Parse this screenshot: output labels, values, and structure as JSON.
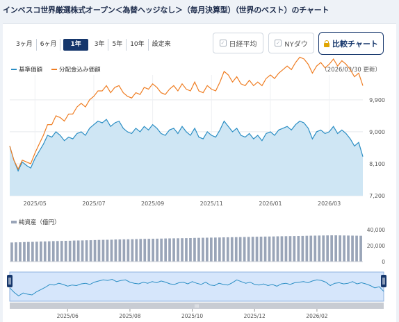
{
  "page_title": "インベスコ世界厳選株式オープン＜為替ヘッジなし＞（毎月決算型）（世界のベスト）のチャート",
  "periods": [
    "3ヶ月",
    "6ヶ月",
    "1年",
    "3年",
    "5年",
    "10年",
    "設定来"
  ],
  "active_period": "1年",
  "compare": {
    "nikkei_label": "日経平均",
    "nydow_label": "NYダウ",
    "compare_chart_label": "比較チャート"
  },
  "legend": {
    "nav_label": "基準価額",
    "dividend_label": "分配金込み価額",
    "updated": "（2026/03/30 更新）"
  },
  "colors": {
    "nav": "#2b8ec4",
    "nav_fill": "#cfe6f4",
    "dividend": "#ef7d22",
    "bars": "#9aa5b8",
    "navigator_bg": "#d6e6fb"
  },
  "chart_data": {
    "type": "line",
    "x_tick_labels": [
      "2025/05",
      "2025/07",
      "2025/09",
      "2025/11",
      "2026/01",
      "2026/03"
    ],
    "y_tick_labels": [
      "9,900",
      "9,000",
      "8,100",
      "7,200"
    ],
    "ylim": [
      7200,
      10600
    ],
    "series": [
      {
        "name": "基準価額",
        "values": [
          8600,
          8200,
          7900,
          8150,
          8050,
          7980,
          8250,
          8450,
          8650,
          8900,
          8850,
          9000,
          8900,
          8750,
          8850,
          8800,
          8950,
          9000,
          8900,
          9100,
          9200,
          9300,
          9250,
          9350,
          9150,
          9250,
          9300,
          9100,
          9000,
          8950,
          9100,
          9000,
          9150,
          9050,
          9200,
          9100,
          8950,
          8900,
          9050,
          9100,
          8950,
          9150,
          9000,
          8900,
          9100,
          8850,
          8800,
          9000,
          8900,
          8850,
          9050,
          9300,
          9150,
          9000,
          9100,
          8900,
          8850,
          8950,
          8800,
          8900,
          8750,
          8950,
          9000,
          8900,
          9050,
          9100,
          9150,
          9050,
          9200,
          9300,
          9250,
          9100,
          8800,
          9000,
          9050,
          8950,
          9000,
          9150,
          8950,
          9050,
          8950,
          8800,
          8600,
          8700,
          8300
        ]
      },
      {
        "name": "分配金込み価額",
        "values": [
          8600,
          8200,
          7950,
          8200,
          8150,
          8100,
          8400,
          8650,
          8900,
          9200,
          9200,
          9450,
          9400,
          9300,
          9500,
          9500,
          9700,
          9800,
          9700,
          9900,
          10000,
          10150,
          10150,
          10300,
          10100,
          10250,
          10300,
          10100,
          10000,
          9950,
          10100,
          10050,
          10250,
          10200,
          10350,
          10250,
          10100,
          10050,
          10200,
          10300,
          10150,
          10350,
          10200,
          10150,
          10400,
          10150,
          10100,
          10300,
          10200,
          10150,
          10400,
          10700,
          10600,
          10400,
          10550,
          10350,
          10300,
          10450,
          10300,
          10400,
          10300,
          10500,
          10600,
          10500,
          10650,
          10750,
          10850,
          10750,
          10950,
          11100,
          11050,
          10900,
          10650,
          10850,
          10950,
          10800,
          10900,
          11050,
          10850,
          11000,
          10900,
          10750,
          10550,
          10650,
          10300
        ]
      },
      {
        "name": "純資産（億円）",
        "values": [
          24000,
          24200,
          24300,
          24500,
          24700,
          24800,
          25000,
          25200,
          25300,
          25500,
          25700,
          25800,
          26000,
          26100,
          26200,
          26400,
          26500,
          26600,
          26800,
          26900,
          27000,
          27200,
          27300,
          27400,
          27500,
          27700,
          27800,
          27900,
          28000,
          28100,
          28300,
          28400,
          28500,
          28600,
          28700,
          28800,
          28900,
          29000,
          29100,
          29200,
          29300,
          29400,
          29500,
          29600,
          29700,
          29800,
          29900,
          30000,
          30100,
          30200,
          30300,
          30400,
          30500,
          30600,
          30700,
          30800,
          30900,
          31000,
          31100,
          31200,
          31300,
          31400,
          31500,
          31600,
          31700,
          31800,
          31900,
          32000,
          32100,
          32200,
          32300,
          32400,
          32500,
          32600,
          32700,
          32800,
          32900,
          33000,
          33000,
          32900,
          32800,
          32700,
          32600,
          32500,
          32400
        ]
      }
    ],
    "bar_series_label": "純資産（億円）",
    "bar_tick_labels": [
      "40,000",
      "20,000",
      "0"
    ],
    "bar_ylim": [
      0,
      40000
    ],
    "navigator_tick_labels": [
      "2025/06",
      "2025/08",
      "2025/10",
      "2025/12",
      "2026/02"
    ]
  }
}
